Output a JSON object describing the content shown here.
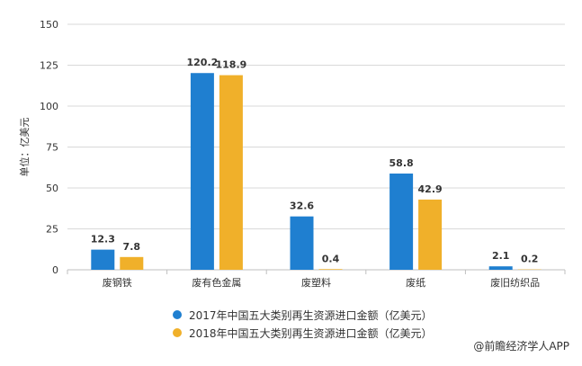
{
  "chart_data": {
    "type": "bar",
    "categories": [
      "废钢铁",
      "废有色金属",
      "废塑料",
      "废纸",
      "废旧纺织品"
    ],
    "series": [
      {
        "name": "2017年中国五大类别再生资源进口金额（亿美元）",
        "values": [
          12.3,
          120.2,
          32.6,
          58.8,
          2.1
        ],
        "color": "#1f7fd0"
      },
      {
        "name": "2018年中国五大类别再生资源进口金额（亿美元）",
        "values": [
          7.8,
          118.9,
          0.4,
          42.9,
          0.2
        ],
        "color": "#f0b02a"
      }
    ],
    "ylabel": "单位：亿美元",
    "ylim": [
      0,
      150
    ],
    "yticks": [
      0,
      25,
      50,
      75,
      100,
      125,
      150
    ],
    "grid": true,
    "legend": "bottom",
    "data_labels": true
  },
  "source": "@前瞻经济学人APP"
}
